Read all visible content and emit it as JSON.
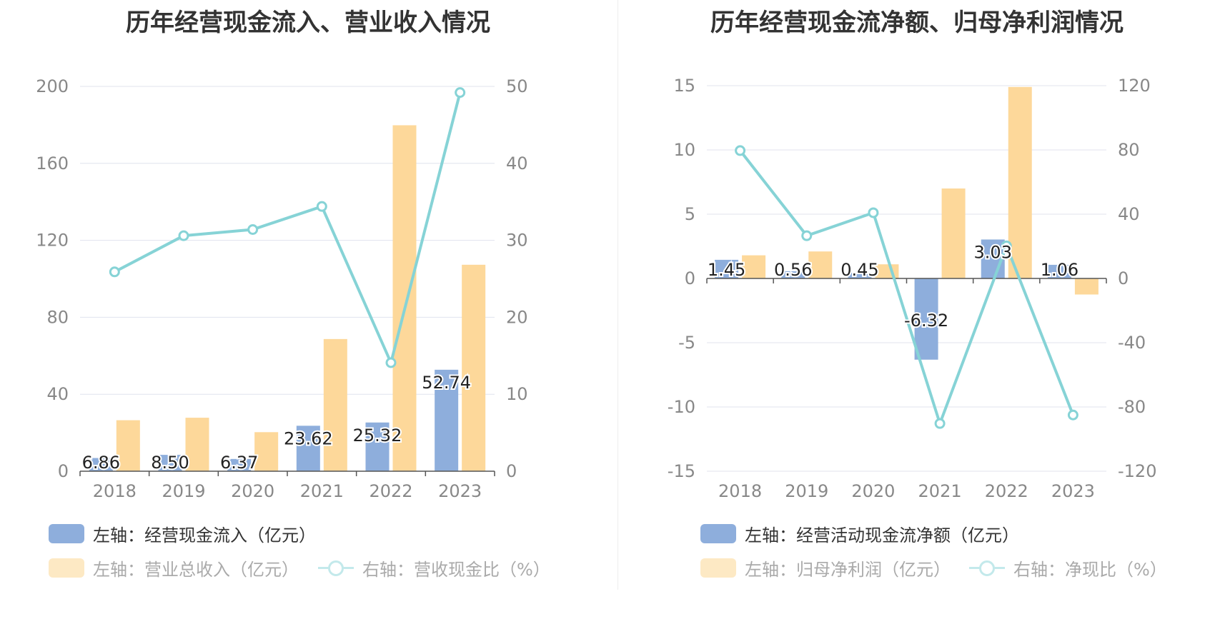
{
  "chart_data": [
    {
      "type": "bar",
      "title": "历年经营现金流入、营业收入情况",
      "categories": [
        "2018",
        "2019",
        "2020",
        "2021",
        "2022",
        "2023"
      ],
      "left_axis": {
        "min": 0,
        "max": 200,
        "ticks": [
          "0",
          "40",
          "80",
          "120",
          "160",
          "200"
        ]
      },
      "right_axis": {
        "min": 0,
        "max": 50,
        "ticks": [
          "0",
          "10",
          "20",
          "30",
          "40",
          "50"
        ]
      },
      "series": [
        {
          "name": "左轴：经营现金流入（亿元）",
          "type": "bar",
          "axis": "left",
          "color": "#8eaedc",
          "values": [
            6.86,
            8.5,
            6.37,
            23.62,
            25.32,
            52.74
          ],
          "labels": [
            "6.86",
            "8.50",
            "6.37",
            "23.62",
            "25.32",
            "52.74"
          ]
        },
        {
          "name": "左轴：营业总收入（亿元）",
          "type": "bar",
          "axis": "left",
          "color": "#fdd89a",
          "values": [
            26.5,
            27.8,
            20.3,
            68.7,
            179.8,
            107.3
          ]
        },
        {
          "name": "右轴：营收现金比（%）",
          "type": "line",
          "axis": "right",
          "color": "#86d3d6",
          "values": [
            25.9,
            30.6,
            31.4,
            34.4,
            14.1,
            49.2
          ]
        }
      ],
      "grid": true,
      "legend_position": "bottom-left"
    },
    {
      "type": "bar",
      "title": "历年经营现金流净额、归母净利润情况",
      "categories": [
        "2018",
        "2019",
        "2020",
        "2021",
        "2022",
        "2023"
      ],
      "left_axis": {
        "min": -15,
        "max": 15,
        "ticks": [
          "-15",
          "-10",
          "-5",
          "0",
          "5",
          "10",
          "15"
        ]
      },
      "right_axis": {
        "min": -120,
        "max": 120,
        "ticks": [
          "-120",
          "-80",
          "-40",
          "0",
          "40",
          "80",
          "120"
        ]
      },
      "series": [
        {
          "name": "左轴：经营活动现金流净额（亿元）",
          "type": "bar",
          "axis": "left",
          "color": "#8eaedc",
          "values": [
            1.45,
            0.56,
            0.45,
            -6.32,
            3.03,
            1.06
          ],
          "labels": [
            "1.45",
            "0.56",
            "0.45",
            "-6.32",
            "3.03",
            "1.06"
          ]
        },
        {
          "name": "左轴：归母净利润（亿元）",
          "type": "bar",
          "axis": "left",
          "color": "#fdd89a",
          "values": [
            1.8,
            2.1,
            1.1,
            7.0,
            14.9,
            -1.25
          ]
        },
        {
          "name": "右轴：净现比（%）",
          "type": "line",
          "axis": "right",
          "color": "#86d3d6",
          "values": [
            79.6,
            26.6,
            40.9,
            -90.3,
            20.3,
            -85.0
          ]
        }
      ],
      "grid": true,
      "legend_position": "bottom-left"
    }
  ]
}
